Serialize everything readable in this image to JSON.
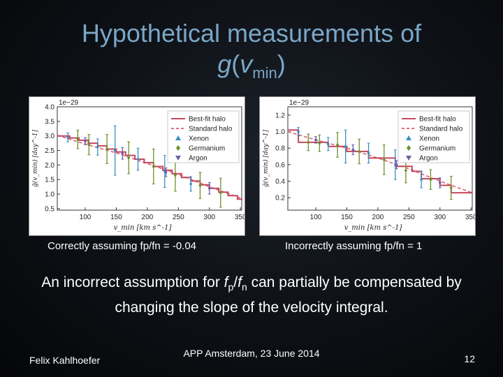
{
  "slide": {
    "title_line1": "Hypothetical measurements of",
    "title_func": "g",
    "title_var": "v",
    "title_sub": "min",
    "caption_left": "Correctly assuming fp/fn = -0.04",
    "caption_right": "Incorrectly assuming fp/fn = 1",
    "statement_part1": "An incorrect assumption for ",
    "statement_fp": "f",
    "statement_p": "p",
    "statement_slash": "/",
    "statement_fn": "f",
    "statement_n": "n",
    "statement_part2": " can partially be compensated by changing the slope of the velocity integral.",
    "footer_author": "Felix Kahlhoefer",
    "footer_event": "APP Amsterdam, 23 June 2014",
    "footer_page": "12"
  },
  "chart_data": [
    {
      "type": "line",
      "xlabel": "v_min [km s^-1]",
      "ylabel": "g̃(v_min) [day^-1]",
      "scale_label": "1e−29",
      "xlim": [
        55,
        352
      ],
      "ylim": [
        0.45,
        4.0
      ],
      "xticks": [
        100,
        150,
        200,
        250,
        300,
        350
      ],
      "yticks": [
        0.5,
        1.0,
        1.5,
        2.0,
        2.5,
        3.0,
        3.5,
        4.0
      ],
      "ytick_labels": [
        "0.5",
        "1.0",
        "1.5",
        "2.0",
        "2.5",
        "3.0",
        "3.5",
        "4.0"
      ],
      "legend": [
        "Best-fit halo",
        "Standard halo",
        "Xenon",
        "Germanium",
        "Argon"
      ],
      "legend_position": "top-right",
      "colors": {
        "best_fit": "#c4485e",
        "standard": "#e07080",
        "xenon": "#3a8fc0",
        "germanium": "#6b8f2a",
        "argon": "#6a5fa8"
      },
      "best_fit_steps": [
        [
          55,
          3.0
        ],
        [
          75,
          2.93
        ],
        [
          90,
          2.85
        ],
        [
          105,
          2.75
        ],
        [
          120,
          2.66
        ],
        [
          135,
          2.55
        ],
        [
          150,
          2.45
        ],
        [
          165,
          2.33
        ],
        [
          180,
          2.2
        ],
        [
          195,
          2.08
        ],
        [
          210,
          1.95
        ],
        [
          225,
          1.82
        ],
        [
          240,
          1.7
        ],
        [
          255,
          1.57
        ],
        [
          270,
          1.45
        ],
        [
          285,
          1.32
        ],
        [
          300,
          1.2
        ],
        [
          315,
          1.07
        ],
        [
          330,
          0.95
        ],
        [
          345,
          0.83
        ],
        [
          352,
          0.8
        ]
      ],
      "standard_curve": [
        [
          55,
          3.02
        ],
        [
          100,
          2.72
        ],
        [
          150,
          2.42
        ],
        [
          200,
          2.05
        ],
        [
          250,
          1.68
        ],
        [
          300,
          1.25
        ],
        [
          352,
          0.85
        ]
      ],
      "series": [
        {
          "name": "Xenon",
          "points": [
            [
              72,
              2.95,
              0.15
            ],
            [
              120,
              2.62,
              0.28
            ],
            [
              148,
              2.5,
              0.85
            ],
            [
              185,
              2.2,
              0.38
            ],
            [
              228,
              1.78,
              0.55
            ],
            [
              270,
              1.35,
              0.25
            ]
          ]
        },
        {
          "name": "Germanium",
          "points": [
            [
              88,
              2.88,
              0.32
            ],
            [
              106,
              2.7,
              0.35
            ],
            [
              135,
              2.55,
              0.5
            ],
            [
              170,
              2.25,
              0.55
            ],
            [
              210,
              1.95,
              0.6
            ],
            [
              245,
              1.65,
              0.55
            ],
            [
              285,
              1.3,
              0.45
            ],
            [
              318,
              1.05,
              0.5
            ]
          ]
        },
        {
          "name": "Argon",
          "points": [
            [
              100,
              2.82,
              0.12
            ],
            [
              160,
              2.4,
              0.2
            ],
            [
              230,
              1.75,
              0.15
            ],
            [
              300,
              1.2,
              0.2
            ]
          ]
        }
      ]
    },
    {
      "type": "line",
      "xlabel": "v_min [km s^-1]",
      "ylabel": "g̃(v_min) [day^-1]",
      "scale_label": "1e−29",
      "xlim": [
        55,
        352
      ],
      "ylim": [
        0.05,
        1.3
      ],
      "xticks": [
        100,
        150,
        200,
        250,
        300,
        350
      ],
      "yticks": [
        0.2,
        0.4,
        0.6,
        0.8,
        1.0,
        1.2
      ],
      "ytick_labels": [
        "0.2",
        "0.4",
        "0.6",
        "0.8",
        "1.0",
        "1.2"
      ],
      "legend": [
        "Best-fit halo",
        "Standard halo",
        "Xenon",
        "Germanium",
        "Argon"
      ],
      "legend_position": "top-right",
      "colors": {
        "best_fit": "#c4485e",
        "standard": "#e07080",
        "xenon": "#3a8fc0",
        "germanium": "#6b8f2a",
        "argon": "#6a5fa8"
      },
      "best_fit_steps": [
        [
          55,
          1.02
        ],
        [
          72,
          1.02
        ],
        [
          72,
          0.87
        ],
        [
          120,
          0.87
        ],
        [
          120,
          0.82
        ],
        [
          150,
          0.82
        ],
        [
          150,
          0.76
        ],
        [
          185,
          0.76
        ],
        [
          185,
          0.68
        ],
        [
          228,
          0.68
        ],
        [
          228,
          0.58
        ],
        [
          255,
          0.58
        ],
        [
          255,
          0.52
        ],
        [
          270,
          0.52
        ],
        [
          270,
          0.43
        ],
        [
          300,
          0.43
        ],
        [
          300,
          0.35
        ],
        [
          318,
          0.35
        ],
        [
          318,
          0.26
        ],
        [
          352,
          0.26
        ]
      ],
      "standard_curve": [
        [
          55,
          1.0
        ],
        [
          100,
          0.9
        ],
        [
          150,
          0.8
        ],
        [
          200,
          0.68
        ],
        [
          250,
          0.55
        ],
        [
          300,
          0.4
        ],
        [
          352,
          0.26
        ]
      ],
      "series": [
        {
          "name": "Xenon",
          "points": [
            [
              72,
              1.0,
              0.05
            ],
            [
              120,
              0.85,
              0.08
            ],
            [
              148,
              0.82,
              0.2
            ],
            [
              185,
              0.74,
              0.12
            ],
            [
              228,
              0.6,
              0.18
            ],
            [
              270,
              0.42,
              0.1
            ]
          ]
        },
        {
          "name": "Germanium",
          "points": [
            [
              88,
              0.87,
              0.1
            ],
            [
              106,
              0.86,
              0.1
            ],
            [
              135,
              0.84,
              0.15
            ],
            [
              170,
              0.76,
              0.15
            ],
            [
              210,
              0.66,
              0.18
            ],
            [
              245,
              0.53,
              0.15
            ],
            [
              285,
              0.42,
              0.12
            ],
            [
              318,
              0.32,
              0.14
            ]
          ]
        },
        {
          "name": "Argon",
          "points": [
            [
              100,
              0.9,
              0.04
            ],
            [
              160,
              0.78,
              0.06
            ],
            [
              230,
              0.6,
              0.05
            ],
            [
              300,
              0.38,
              0.06
            ]
          ]
        }
      ]
    }
  ]
}
